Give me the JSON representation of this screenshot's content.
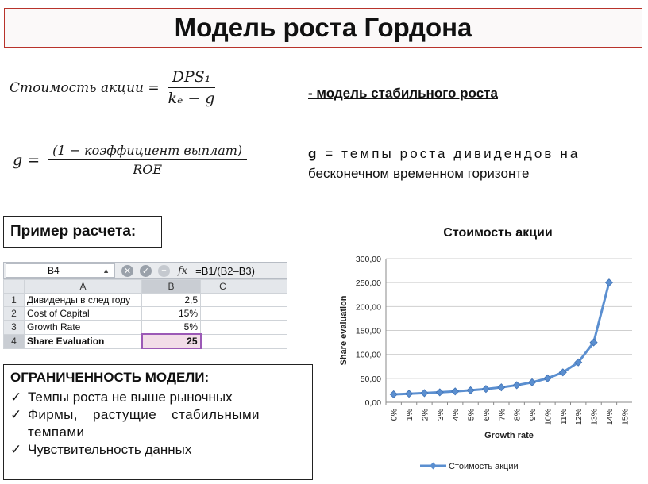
{
  "title": "Модель роста Гордона",
  "formulas": {
    "share_value": {
      "lhs": "Стоимость акции =",
      "numerator": "DPS₁",
      "denominator": "kₑ − g"
    },
    "growth": {
      "lhs": "g =",
      "numerator": "(1 − коэффициент выплат)",
      "denominator": "ROE"
    }
  },
  "notes": {
    "stable": "- модель стабильного роста",
    "g_symbol": "g",
    "g_line1": " = темпы роста дивидендов на",
    "g_line2": "бесконечном временном горизонте"
  },
  "example_label": "Пример расчета:",
  "spreadsheet": {
    "cell_ref": "B4",
    "cancel_icon": "x-circle-icon",
    "confirm_icon": "check-circle-icon",
    "fx_label": "fx",
    "formula": "=B1/(B2–B3)",
    "columns": [
      "A",
      "B",
      "C"
    ],
    "rows": [
      {
        "num": "1",
        "label": "Дивиденды в след году",
        "value": "2,5"
      },
      {
        "num": "2",
        "label": "Cost of Capital",
        "value": "15%"
      },
      {
        "num": "3",
        "label": "Growth Rate",
        "value": "5%"
      },
      {
        "num": "4",
        "label": "Share Evaluation",
        "value": "25"
      }
    ]
  },
  "limits": {
    "header": "ОГРАНИЧЕННОСТЬ МОДЕЛИ:",
    "check_glyph": "✓",
    "items": [
      "Темпы роста не выше рыночных",
      "Фирмы, растущие стабильными темпами",
      "Чувствительность данных"
    ]
  },
  "chart_data": {
    "type": "line",
    "title": "Стоимость акции",
    "xlabel": "Growth rate",
    "ylabel": "Share evaluation",
    "categories": [
      "0%",
      "1%",
      "2%",
      "3%",
      "4%",
      "5%",
      "6%",
      "7%",
      "8%",
      "9%",
      "10%",
      "11%",
      "12%",
      "13%",
      "14%",
      "15%"
    ],
    "series": [
      {
        "name": "Стоимость акции",
        "values": [
          16.67,
          17.86,
          19.23,
          20.83,
          22.73,
          25.0,
          27.78,
          31.25,
          35.71,
          41.67,
          50.0,
          62.5,
          83.33,
          125.0,
          250.0,
          null
        ]
      }
    ],
    "ylim": [
      0,
      300
    ],
    "yticks": [
      "0,00",
      "50,00",
      "100,00",
      "150,00",
      "200,00",
      "250,00",
      "300,00"
    ],
    "grid": true,
    "legend": "bottom",
    "color": "#5b8fd0"
  }
}
